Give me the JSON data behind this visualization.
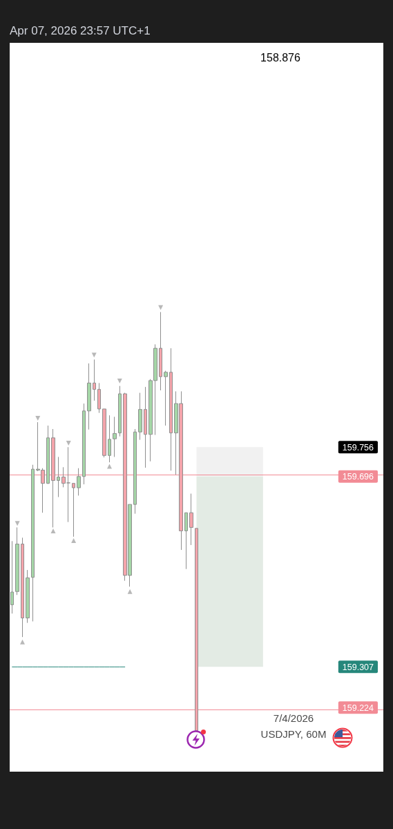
{
  "chart_data": {
    "type": "candlestick",
    "title": "Apr 07, 2026 23:57 UTC+1",
    "categories": [
      null,
      null,
      null,
      null,
      null,
      null,
      null,
      null,
      null,
      null,
      null,
      null,
      null,
      null,
      null,
      null,
      null,
      null,
      null,
      null,
      null,
      null,
      null,
      null,
      null,
      null,
      null,
      null,
      null,
      null,
      null,
      null,
      null,
      null,
      null,
      null,
      null,
      null,
      null,
      null,
      null,
      null,
      null,
      null,
      null,
      null,
      null,
      null,
      null,
      null,
      null,
      null,
      null,
      null,
      null,
      null,
      null,
      null,
      null,
      null,
      null,
      null,
      null,
      null,
      null,
      null,
      null,
      null,
      null,
      null,
      null,
      null,
      null
    ],
    "ohlc": [
      [
        159.434,
        159.564,
        159.416,
        159.46
      ],
      [
        159.461,
        159.592,
        159.454,
        159.558
      ],
      [
        159.558,
        159.571,
        159.368,
        159.407
      ],
      [
        159.407,
        159.505,
        159.397,
        159.489
      ],
      [
        159.49,
        159.72,
        159.4,
        159.711
      ],
      [
        159.709,
        159.807,
        159.707,
        159.711
      ],
      [
        159.709,
        159.713,
        159.622,
        159.682
      ],
      [
        159.682,
        159.8,
        159.681,
        159.775
      ],
      [
        159.775,
        159.793,
        159.592,
        159.688
      ],
      [
        159.688,
        159.736,
        159.654,
        159.695
      ],
      [
        159.695,
        159.715,
        159.674,
        159.682
      ],
      [
        159.683,
        159.756,
        159.603,
        159.683
      ],
      [
        159.682,
        159.682,
        159.573,
        159.673
      ],
      [
        159.673,
        159.713,
        159.657,
        159.696
      ],
      [
        159.696,
        159.845,
        159.68,
        159.83
      ],
      [
        159.83,
        159.927,
        159.792,
        159.887
      ],
      [
        159.887,
        159.935,
        159.851,
        159.874
      ],
      [
        159.874,
        159.887,
        159.826,
        159.834
      ],
      [
        159.834,
        159.834,
        159.735,
        159.739
      ],
      [
        159.739,
        159.821,
        159.725,
        159.772
      ],
      [
        159.773,
        159.818,
        159.736,
        159.784
      ],
      [
        159.785,
        159.881,
        159.778,
        159.865
      ],
      [
        159.865,
        159.867,
        159.483,
        159.494
      ],
      [
        159.494,
        159.639,
        159.471,
        159.639
      ],
      [
        159.639,
        159.793,
        159.62,
        159.787
      ],
      [
        159.787,
        159.867,
        159.771,
        159.833
      ],
      [
        159.833,
        159.879,
        159.714,
        159.782
      ],
      [
        159.782,
        159.895,
        159.727,
        159.892
      ],
      [
        159.892,
        159.966,
        159.781,
        159.958
      ],
      [
        159.958,
        160.032,
        159.872,
        159.9
      ],
      [
        159.9,
        159.912,
        159.8,
        159.909
      ],
      [
        159.909,
        159.958,
        159.708,
        159.785
      ],
      [
        159.785,
        159.87,
        159.7,
        159.845
      ],
      [
        159.845,
        159.87,
        159.546,
        159.585
      ],
      [
        159.585,
        159.622,
        159.507,
        159.622
      ],
      [
        159.622,
        159.661,
        159.556,
        159.592
      ],
      [
        159.59,
        159.59,
        159.176,
        159.177
      ],
      null,
      null,
      null,
      null,
      null,
      null,
      null,
      null,
      null,
      null,
      null,
      null,
      null,
      null,
      null,
      null,
      null,
      null,
      null,
      null,
      null,
      null,
      null,
      null,
      null,
      null,
      null,
      null,
      null,
      null,
      null,
      null,
      null,
      null,
      null,
      null
    ],
    "colors": [
      "#a5d6a7",
      "#a5d6a7",
      "#f4a4ab",
      "#a5d6a7",
      "#a5d6a7",
      "#a5d6a7",
      "#f4a4ab",
      "#a5d6a7",
      "#f4a4ab",
      "#a5d6a7",
      "#f4a4ab",
      "#8f8f8f",
      "#f4a4ab",
      "#a5d6a7",
      "#a5d6a7",
      "#a5d6a7",
      "#f4a4ab",
      "#f4a4ab",
      "#f4a4ab",
      "#a5d6a7",
      "#a5d6a7",
      "#a5d6a7",
      "#f4a4ab",
      "#a5d6a7",
      "#a5d6a7",
      "#a5d6a7",
      "#f4a4ab",
      "#a5d6a7",
      "#a5d6a7",
      "#f4a4ab",
      "#a5d6a7",
      "#f4a4ab",
      "#a5d6a7",
      "#f4a4ab",
      "#a5d6a7",
      "#f4a4ab",
      "#f4a4ab",
      null,
      null,
      null,
      null,
      null,
      null,
      null,
      null,
      null,
      null,
      null,
      null,
      null,
      null,
      null,
      null,
      null,
      null,
      null,
      null,
      null,
      null,
      null,
      null,
      null,
      null,
      null,
      null,
      null,
      null,
      null,
      null,
      null,
      null,
      null,
      null
    ],
    "series": [
      {
        "type": "line",
        "color": "#26877b",
        "values": [
          159.307,
          159.307,
          159.307,
          159.307,
          159.307,
          159.307,
          159.307,
          159.307,
          159.307,
          159.307,
          159.307,
          159.307,
          159.307,
          159.307,
          159.307,
          159.307,
          159.307,
          159.307,
          159.307,
          159.307,
          159.307,
          159.307,
          159.307,
          null,
          null,
          null,
          null,
          null,
          null,
          null,
          null,
          null,
          null,
          null,
          null,
          null,
          null,
          null,
          null,
          null,
          null,
          null,
          null,
          null,
          null,
          null,
          null,
          null,
          null,
          null,
          null,
          null,
          null,
          null,
          null,
          null,
          null,
          null,
          null,
          null,
          null,
          null,
          null,
          null,
          null,
          null,
          null,
          null,
          null,
          null,
          null,
          null,
          null
        ]
      },
      {
        "type": "scatter",
        "marker": "triangle",
        "color": "#a6a6a6",
        "values": [
          null,
          159.6,
          159.358,
          null,
          null,
          159.815,
          null,
          null,
          159.585,
          null,
          null,
          159.764,
          159.565,
          null,
          null,
          null,
          159.944,
          null,
          null,
          159.717,
          null,
          159.891,
          null,
          159.461,
          null,
          null,
          null,
          null,
          null,
          160.041,
          null,
          null,
          null,
          null,
          null,
          null,
          null,
          null,
          null,
          null,
          null,
          null,
          null,
          null,
          null,
          null,
          null,
          null,
          null,
          null,
          null,
          null,
          null,
          null,
          null,
          null,
          null,
          null,
          null,
          null,
          null,
          null,
          null,
          null,
          null,
          null,
          null,
          null,
          null,
          null,
          null,
          null,
          null
        ]
      }
    ],
    "ylim": [
      159.093,
      160.582
    ],
    "yticks": [
      159.224,
      159.307,
      159.696,
      159.756
    ],
    "ref_lines": [
      {
        "axis": "y",
        "value": 159.696,
        "color": "#f28b95"
      },
      {
        "axis": "y",
        "value": 159.224,
        "color": "#f28b95"
      }
    ],
    "bands": [
      {
        "axis": "y",
        "from": 159.696,
        "to": 159.756,
        "color": "#f1f1f1"
      },
      {
        "axis": "y",
        "from": 159.307,
        "to": 159.696,
        "color": "#e3ebe4"
      }
    ],
    "annotations": [
      "158.876",
      "7/4/2026",
      "USDJPY, 60M"
    ],
    "tick_labels": "y"
  }
}
